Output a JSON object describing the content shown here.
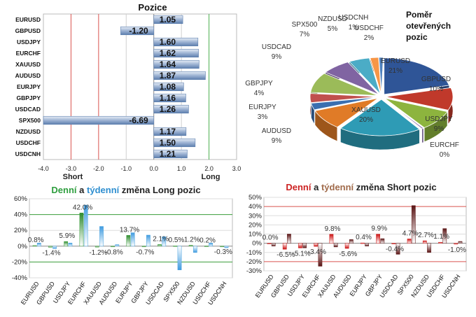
{
  "chart_data": [
    {
      "type": "bar",
      "orientation": "horizontal",
      "title": "Pozice",
      "categories": [
        "EURUSD",
        "GBPUSD",
        "USDJPY",
        "EURCHF",
        "XAUUSD",
        "AUDUSD",
        "EURJPY",
        "GBPJPY",
        "USDCAD",
        "SPX500",
        "NZDUSD",
        "USDCHF",
        "USDCNH"
      ],
      "values": [
        1.05,
        -1.2,
        1.6,
        1.62,
        1.64,
        1.87,
        1.08,
        1.16,
        1.26,
        -6.69,
        1.17,
        1.5,
        1.21
      ],
      "value_labels": [
        "1.05",
        "-1.20",
        "1.60",
        "1.62",
        "1.64",
        "1.87",
        "1.08",
        "1.16",
        "1.26",
        "-6.69",
        "1.17",
        "1.50",
        "1.21"
      ],
      "xlim": [
        -4.0,
        3.0
      ],
      "xticks": [
        "-4.0",
        "-3.0",
        "-2.0",
        "-1.0",
        "0.0",
        "1.0",
        "2.0",
        "3.0"
      ],
      "axis_notes": [
        "Short",
        "Long"
      ],
      "grid": true
    },
    {
      "type": "pie",
      "title": "Poměr otevřených pozic",
      "slices": [
        {
          "label": "EURUSD",
          "value": 21,
          "text": "21%",
          "color": "#2f5597"
        },
        {
          "label": "GBPUSD",
          "value": 10,
          "text": "10%",
          "color": "#c0392b"
        },
        {
          "label": "USDJPY",
          "value": 9,
          "text": "9%",
          "color": "#8db43e"
        },
        {
          "label": "EURCHF",
          "value": 0,
          "text": "0%",
          "color": "#7f5fa8"
        },
        {
          "label": "XAUUSD",
          "value": 20,
          "text": "20%",
          "color": "#2e9bb5"
        },
        {
          "label": "AUDUSD",
          "value": 9,
          "text": "9%",
          "color": "#e07b27"
        },
        {
          "label": "EURJPY",
          "value": 3,
          "text": "3%",
          "color": "#3a6fb0"
        },
        {
          "label": "GBPJPY",
          "value": 4,
          "text": "4%",
          "color": "#c0504d"
        },
        {
          "label": "USDCAD",
          "value": 9,
          "text": "9%",
          "color": "#9bbb59"
        },
        {
          "label": "SPX500",
          "value": 7,
          "text": "7%",
          "color": "#8064a2"
        },
        {
          "label": "NZDUSD",
          "value": 5,
          "text": "5%",
          "color": "#4bacc6"
        },
        {
          "label": "USDCHF",
          "value": 2,
          "text": "2%",
          "color": "#f79646"
        },
        {
          "label": "USDCNH",
          "value": 1,
          "text": "1%",
          "color": "#4f81bd"
        }
      ]
    },
    {
      "type": "bar",
      "title_parts": [
        "Denní",
        "a",
        "týdenní",
        "změna Long pozic"
      ],
      "title_colors": [
        "#2e9e3e",
        "#222222",
        "#2f8fd0",
        "#222222"
      ],
      "categories": [
        "EURUSD",
        "GBPUSD",
        "USDJPY",
        "EURCHF",
        "XAUUSD",
        "AUDUSD",
        "EURJPY",
        "GBPJPY",
        "USDCAD",
        "SPX500",
        "NZDUSD",
        "USDCHF",
        "USDCNH"
      ],
      "series": [
        {
          "values": [
            0.8,
            -1.4,
            5.9,
            42.0,
            -1.2,
            -0.8,
            13.7,
            -0.7,
            2.1,
            0.5,
            1.2,
            0.2,
            -0.3
          ],
          "color": "#3a9d3a"
        },
        {
          "values": [
            4,
            -3,
            4,
            52,
            25,
            2,
            17,
            14,
            12,
            -30,
            -8,
            4,
            -2
          ],
          "color": "#4aa3df"
        }
      ],
      "data_labels": [
        "0.8%",
        "-1.4%",
        "5.9%",
        "42.0%",
        "-1.2%",
        "-0.8%",
        "13.7%",
        "-0.7%",
        "2.1%",
        "0.5%",
        "1.2%",
        "0.2%",
        "-0.3%"
      ],
      "ylim": [
        -40,
        60
      ],
      "yticks": [
        "60%",
        "40%",
        "20%",
        "0%",
        "-20%",
        "-40%"
      ]
    },
    {
      "type": "bar",
      "title_parts": [
        "Denní",
        "a",
        "týdenní",
        "změna Short pozic"
      ],
      "title_colors": [
        "#cc2222",
        "#222222",
        "#a06a4a",
        "#222222"
      ],
      "categories": [
        "EURUSD",
        "GBPUSD",
        "USDJPY",
        "EURCHF",
        "XAUUSD",
        "AUDUSD",
        "EURJPY",
        "GBPJPY",
        "USDCAD",
        "SPX500",
        "NZDUSD",
        "USDCHF",
        "USDCNH"
      ],
      "series": [
        {
          "values": [
            0.0,
            -6.5,
            -5.1,
            -3.4,
            9.8,
            -5.6,
            0.4,
            9.9,
            -0.4,
            4.7,
            2.7,
            1.1,
            -1.0
          ],
          "color": "#cc1111"
        },
        {
          "values": [
            -3,
            10,
            -5,
            -25,
            -4,
            4,
            -3,
            5,
            -12,
            41,
            -10,
            16,
            2
          ],
          "color": "#5a1414"
        }
      ],
      "data_labels": [
        "0.0%",
        "-6.5%",
        "-5.1%",
        "-3.4%",
        "9.8%",
        "-5.6%",
        "0.4%",
        "9.9%",
        "-0.4%",
        "4.7%",
        "2.7%",
        "1.1%",
        "-1.0%"
      ],
      "ylim": [
        -30,
        50
      ],
      "yticks": [
        "50%",
        "40%",
        "30%",
        "20%",
        "10%",
        "0%",
        "-10%",
        "-20%",
        "-30%"
      ]
    }
  ]
}
